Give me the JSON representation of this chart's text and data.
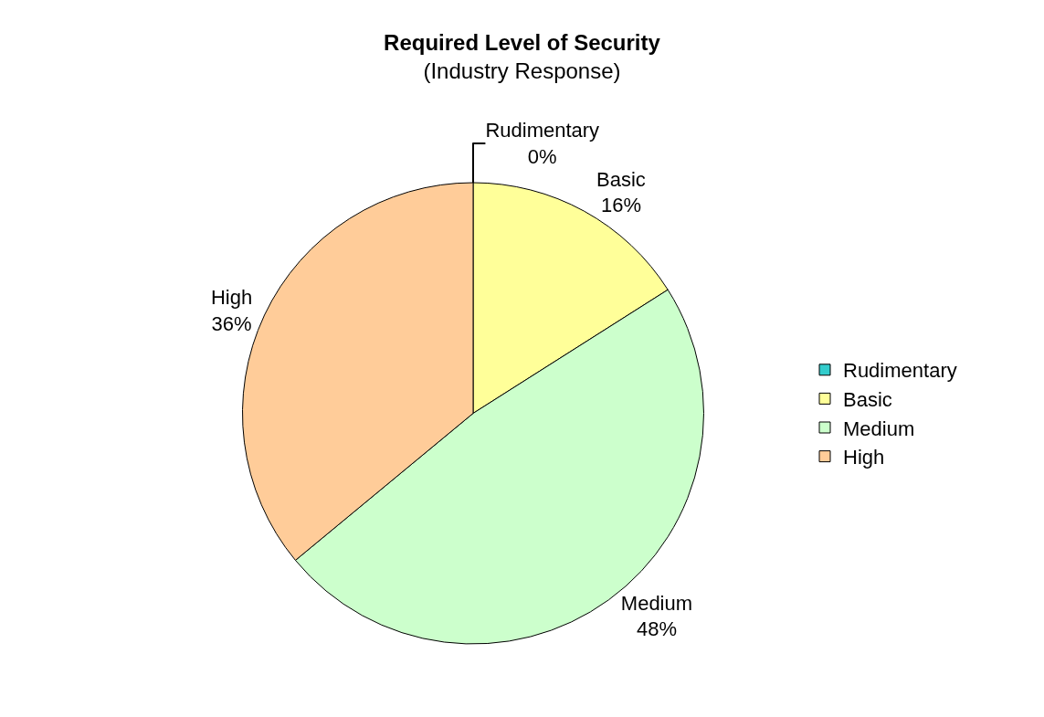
{
  "chart_data": {
    "type": "pie",
    "title": "Required Level of Security",
    "subtitle": "(Industry Response)",
    "categories": [
      "Rudimentary",
      "Basic",
      "Medium",
      "High"
    ],
    "values": [
      0,
      16,
      48,
      36
    ],
    "value_labels": [
      "0%",
      "16%",
      "48%",
      "36%"
    ],
    "colors": [
      "#33cccc",
      "#ffff99",
      "#ccffcc",
      "#ffcc99"
    ],
    "legend": "right"
  }
}
